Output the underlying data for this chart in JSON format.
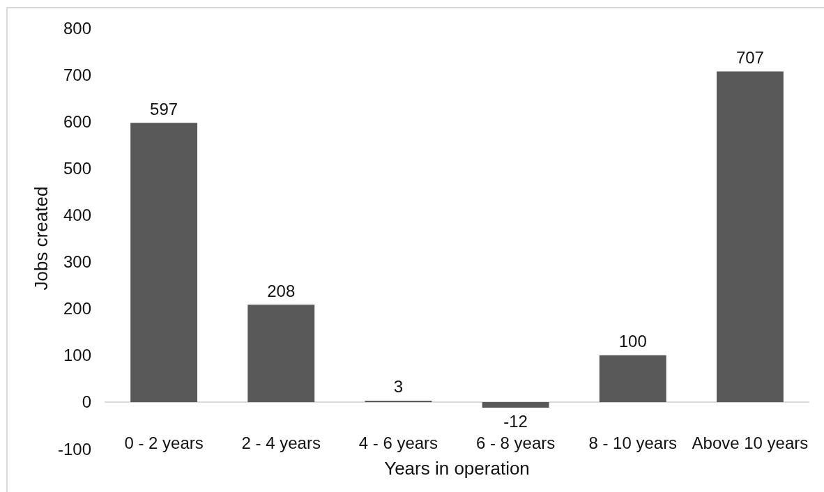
{
  "chart_data": {
    "type": "bar",
    "xlabel": "Years in operation",
    "ylabel": "Jobs created",
    "categories": [
      "0 - 2 years",
      "2 - 4 years",
      "4 - 6 years",
      "6 - 8 years",
      "8 - 10 years",
      "Above 10 years"
    ],
    "values": [
      597,
      208,
      3,
      -12,
      100,
      707
    ],
    "color": "#595959",
    "ylim": [
      -100,
      800
    ],
    "yticks": [
      -100,
      0,
      100,
      200,
      300,
      400,
      500,
      600,
      700,
      800
    ],
    "data_labels": true
  }
}
